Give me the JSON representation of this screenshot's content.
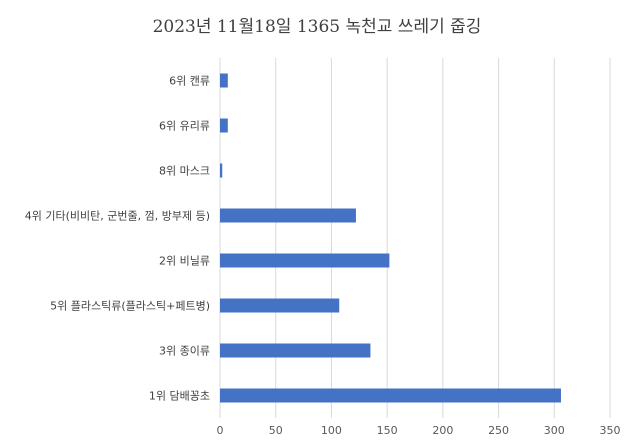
{
  "chart_data": {
    "type": "bar",
    "orientation": "horizontal",
    "title": "2023년 11월18일 1365 녹천교 쓰레기 줍깅",
    "categories": [
      "6위 캔류",
      "6위 유리류",
      "8위 마스크",
      "4위 기타(비비탄, 군번줄, 껌, 방부제 등)",
      "2위 비닐류",
      "5위 플라스틱류(플라스틱+페트병)",
      "3위 종이류",
      "1위 담배꽁초"
    ],
    "values": [
      7,
      7,
      2,
      122,
      152,
      107,
      135,
      306
    ],
    "xlim": [
      0,
      350
    ],
    "xticks": [
      0,
      50,
      100,
      150,
      200,
      250,
      300,
      350
    ],
    "xlabel": "",
    "ylabel": "",
    "grid": "vertical",
    "bar_color": "#4472c4",
    "grid_color": "#d9d9d9"
  }
}
